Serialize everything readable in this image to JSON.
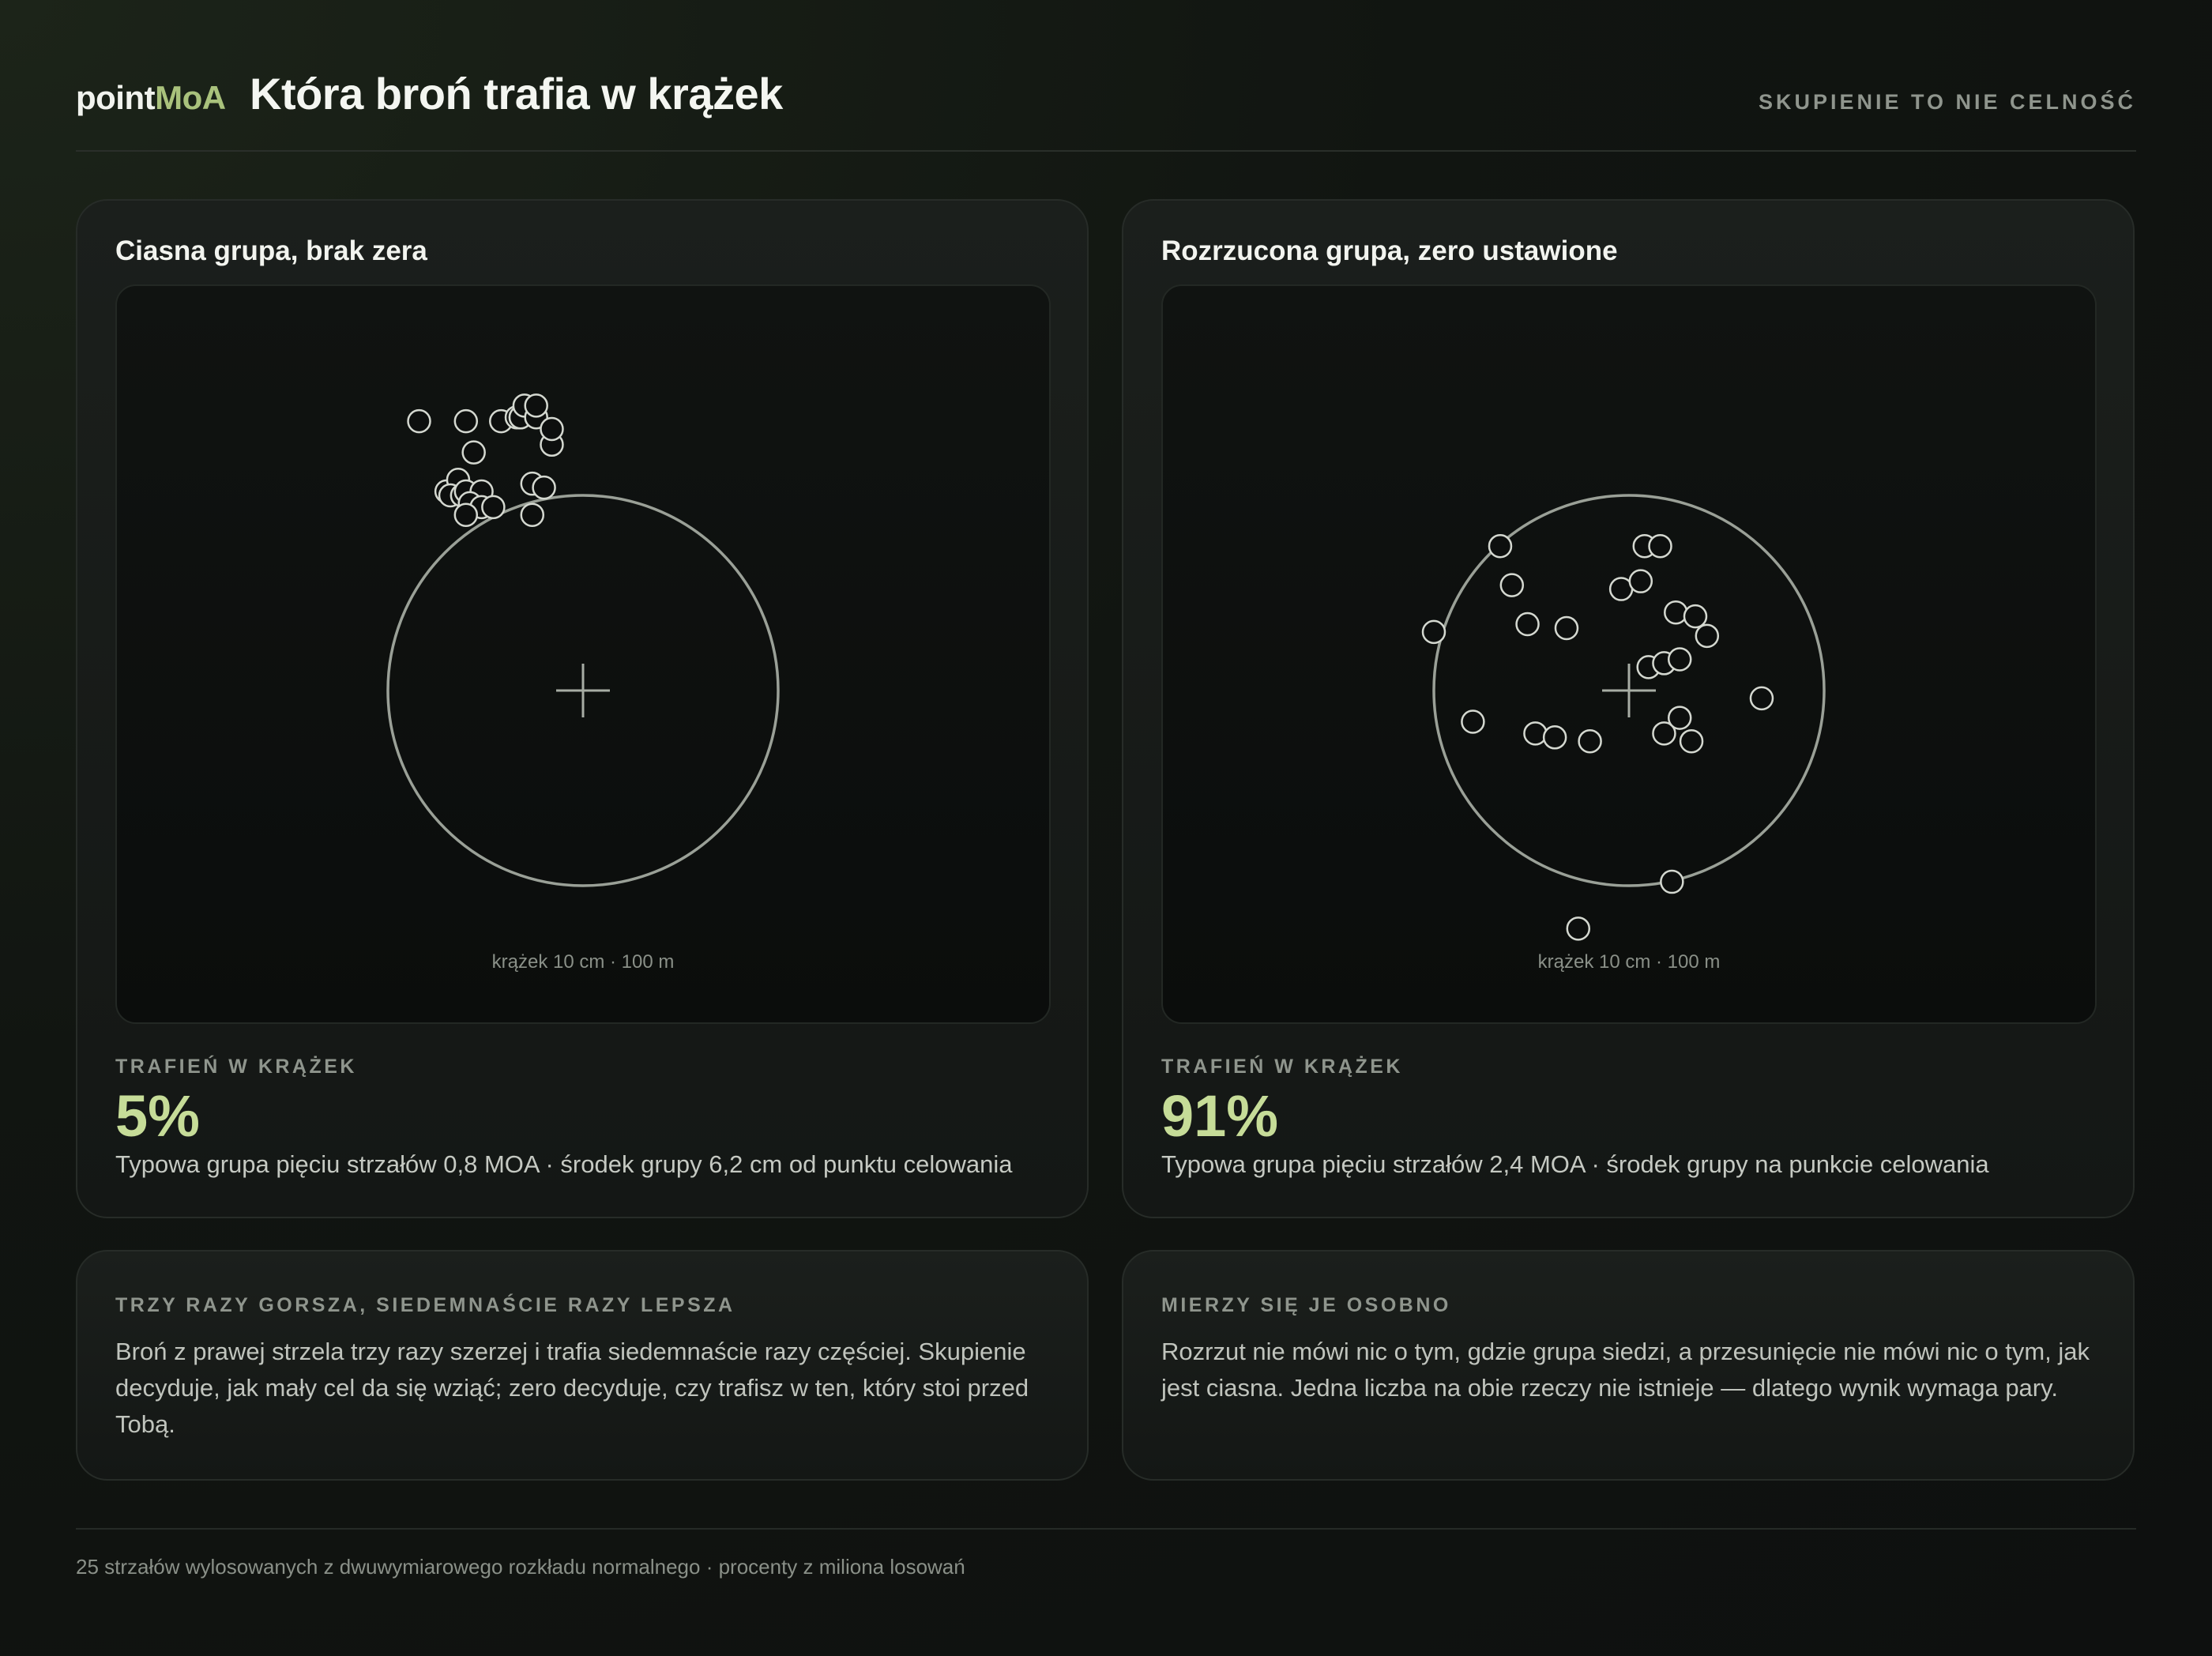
{
  "header": {
    "brand_part1": "point",
    "brand_part2": "MoA",
    "title": "Która broń trafia w krążek",
    "tagline": "SKUPIENIE TO NIE CELNOŚĆ"
  },
  "colors": {
    "accent": "#a9c27c",
    "stat": "#c6dc98",
    "target_ring": "#9aa097",
    "shot_outline": "#d4d8d0"
  },
  "panels": [
    {
      "title": "Ciasna grupa, brak zera",
      "caption": "krążek 10 cm · 100 m",
      "stat_label": "TRAFIEŃ W KRĄŻEK",
      "stat_value": "5%",
      "description": "Typowa grupa pięciu strzałów 0,8 MOA · środek grupy 6,2 cm od punktu celowania",
      "target": {
        "diameter_cm": 10,
        "distance_m": 100
      },
      "shots_cm": [
        [
          -4.2,
          6.9
        ],
        [
          -3.0,
          6.9
        ],
        [
          -2.8,
          6.1
        ],
        [
          -2.1,
          6.9
        ],
        [
          -1.7,
          7.0
        ],
        [
          -1.6,
          7.0
        ],
        [
          -1.6,
          7.0
        ],
        [
          -1.5,
          7.3
        ],
        [
          -1.2,
          7.0
        ],
        [
          -1.2,
          7.3
        ],
        [
          -0.8,
          6.3
        ],
        [
          -0.8,
          6.7
        ],
        [
          -3.5,
          5.1
        ],
        [
          -3.2,
          5.4
        ],
        [
          -3.4,
          5.0
        ],
        [
          -3.1,
          5.0
        ],
        [
          -3.0,
          5.1
        ],
        [
          -2.6,
          5.1
        ],
        [
          -2.9,
          4.8
        ],
        [
          -2.6,
          4.7
        ],
        [
          -2.3,
          4.7
        ],
        [
          -3.0,
          4.5
        ],
        [
          -1.3,
          5.3
        ],
        [
          -1.0,
          5.2
        ],
        [
          -1.3,
          4.5
        ]
      ]
    },
    {
      "title": "Rozrzucona grupa, zero ustawione",
      "caption": "krążek 10 cm · 100 m",
      "stat_label": "TRAFIEŃ W KRĄŻEK",
      "stat_value": "91%",
      "description": "Typowa grupa pięciu strzałów 2,4 MOA · środek grupy na punkcie celowania",
      "target": {
        "diameter_cm": 10,
        "distance_m": 100
      },
      "shots_cm": [
        [
          -3.3,
          3.7
        ],
        [
          -3.0,
          2.7
        ],
        [
          -2.6,
          1.7
        ],
        [
          -1.6,
          1.6
        ],
        [
          0.4,
          3.7
        ],
        [
          0.8,
          3.7
        ],
        [
          -0.2,
          2.6
        ],
        [
          0.3,
          2.8
        ],
        [
          1.2,
          2.0
        ],
        [
          1.7,
          1.9
        ],
        [
          2.0,
          1.4
        ],
        [
          -5.0,
          1.5
        ],
        [
          0.5,
          0.6
        ],
        [
          0.9,
          0.7
        ],
        [
          1.3,
          0.8
        ],
        [
          3.4,
          -0.2
        ],
        [
          -4.0,
          -0.8
        ],
        [
          -2.4,
          -1.1
        ],
        [
          -1.9,
          -1.2
        ],
        [
          -1.0,
          -1.3
        ],
        [
          0.9,
          -1.1
        ],
        [
          1.3,
          -0.7
        ],
        [
          1.6,
          -1.3
        ],
        [
          1.1,
          -4.9
        ],
        [
          -1.3,
          -6.1
        ]
      ]
    }
  ],
  "notes": [
    {
      "label": "TRZY RAZY GORSZA, SIEDEMNAŚCIE RAZY LEPSZA",
      "text": "Broń z prawej strzela trzy razy szerzej i trafia siedemnaście razy częściej. Skupienie decyduje, jak mały cel da się wziąć; zero decyduje, czy trafisz w ten, który stoi przed Tobą."
    },
    {
      "label": "MIERZY SIĘ JE OSOBNO",
      "text": "Rozrzut nie mówi nic o tym, gdzie grupa siedzi, a przesunięcie nie mówi nic o tym, jak jest ciasna. Jedna liczba na obie rzeczy nie istnieje — dlatego wynik wymaga pary."
    }
  ],
  "footnote": "25 strzałów wylosowanych z dwuwymiarowego rozkładu normalnego · procenty z miliona losowań"
}
